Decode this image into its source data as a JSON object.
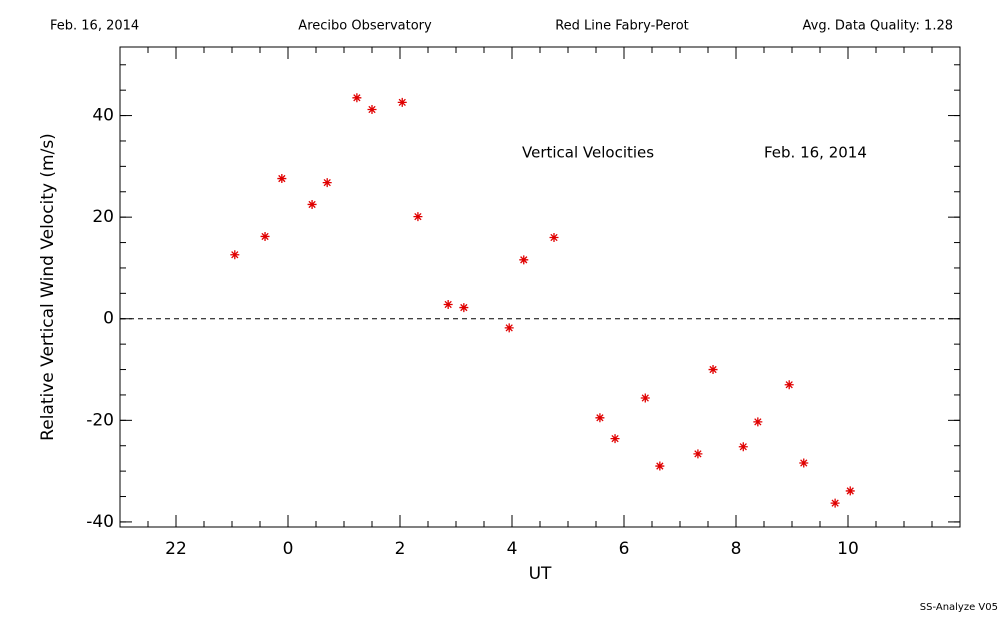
{
  "chart_data": {
    "type": "scatter",
    "header": [
      "Feb. 16, 2014",
      "Arecibo Observatory",
      "Red Line Fabry-Perot",
      "Avg. Data Quality: 1.28"
    ],
    "annotations": [
      "Vertical Velocities",
      "Feb. 16, 2014"
    ],
    "footer": "SS-Analyze V05",
    "x_label": "UT",
    "y_label": "Relative Vertical Wind Velocity (m/s)",
    "x": [
      -0.95,
      -0.41,
      -0.11,
      0.43,
      0.7,
      1.23,
      1.5,
      2.04,
      2.32,
      2.86,
      3.14,
      3.95,
      4.21,
      4.75,
      5.57,
      5.84,
      6.38,
      6.64,
      7.32,
      7.59,
      8.13,
      8.39,
      8.95,
      9.21,
      9.77,
      10.04
    ],
    "values": [
      12.6,
      16.2,
      27.6,
      22.5,
      26.8,
      43.5,
      41.2,
      42.6,
      20.1,
      2.8,
      2.2,
      -1.8,
      11.6,
      16.0,
      -19.5,
      -23.6,
      -15.6,
      -29.0,
      -26.6,
      -10.0,
      -25.2,
      -20.3,
      -13.0,
      -28.4,
      -36.3,
      -33.9
    ],
    "color": "#e00000",
    "xlim": [
      -3,
      12
    ],
    "xticks": [
      {
        "value": -2,
        "label": "22"
      },
      0,
      2,
      4,
      6,
      8,
      10
    ],
    "xminor": 0.5,
    "ylim": [
      -41,
      53.5
    ],
    "yticks": [
      -40,
      -20,
      0,
      20,
      40
    ],
    "yminor": 5,
    "reference_line": 0
  }
}
